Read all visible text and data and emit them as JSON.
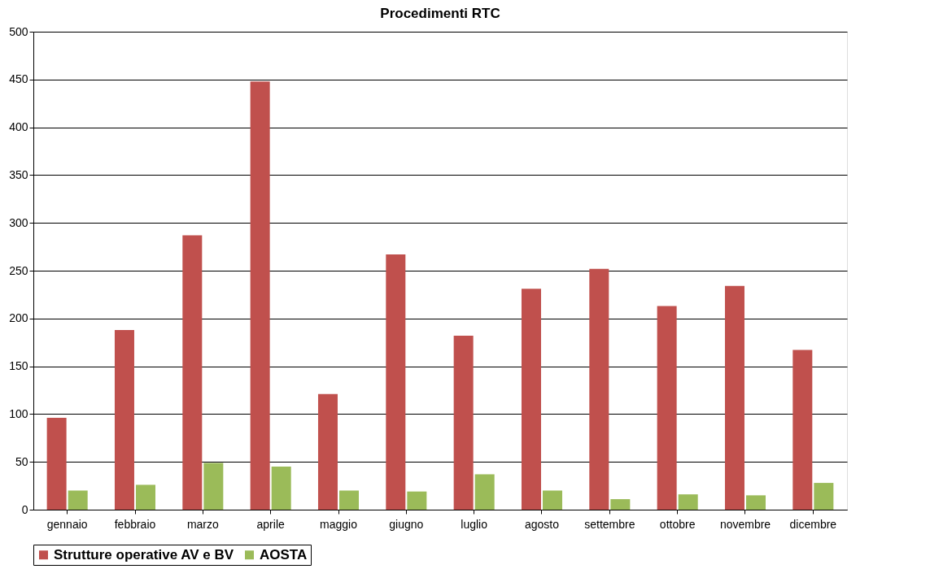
{
  "chart_data": {
    "type": "bar",
    "title": "Procedimenti RTC",
    "categories": [
      "gennaio",
      "febbraio",
      "marzo",
      "aprile",
      "maggio",
      "giugno",
      "luglio",
      "agosto",
      "settembre",
      "ottobre",
      "novembre",
      "dicembre"
    ],
    "series": [
      {
        "name": "Strutture operative AV e BV",
        "color": "#c0504d",
        "values": [
          96,
          188,
          287,
          448,
          121,
          267,
          182,
          231,
          252,
          213,
          234,
          167
        ]
      },
      {
        "name": "AOSTA",
        "color": "#9bbb59",
        "values": [
          20,
          26,
          49,
          45,
          20,
          19,
          37,
          20,
          11,
          16,
          15,
          28
        ]
      }
    ],
    "ylim": [
      0,
      500
    ],
    "yticks": [
      0,
      50,
      100,
      150,
      200,
      250,
      300,
      350,
      400,
      450,
      500
    ],
    "grid": "y",
    "legend": "bottom"
  }
}
